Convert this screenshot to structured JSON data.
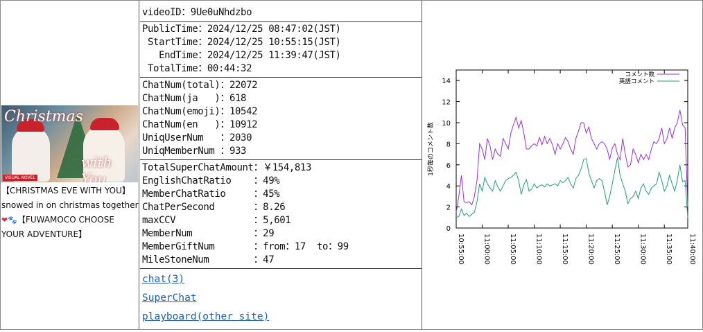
{
  "video": {
    "title_line1": "【CHRISTMAS EVE WITH YOU】",
    "title_line2": "snowed in on christmas together",
    "title_line3": "【FUWAMOCO CHOOSE YOUR ADVENTURE】",
    "thumb_text1": "Christmas",
    "thumb_text2": "with You",
    "thumb_badge": "VISUAL NOVEL",
    "hearts": "❤🐾"
  },
  "info": {
    "videoid": "videoID：9Ue0uNhdzbo",
    "public_time": "PublicTime：2024/12/25 08:47:02(JST)",
    "start_time": " StartTime：2024/12/25 10:55:15(JST)",
    "end_time": "   EndTime：2024/12/25 11:39:47(JST)",
    "total_time": " TotalTime：00:44:32"
  },
  "chat": {
    "total": "ChatNum(total)：22072",
    "ja": "ChatNum(ja   )：618",
    "emoji": "ChatNum(emoji)：10542",
    "en": "ChatNum(en   )：10912",
    "uniq_user": "UniqUserNum   ：2030",
    "uniq_member": "UniqMemberNum ：933"
  },
  "stats": {
    "superchat": "TotalSuperChatAmount：￥154,813",
    "english_ratio": "EnglishChatRatio    ：49%",
    "member_ratio": "MemberChatRatio     ：45%",
    "chat_per_sec": "ChatPerSecond       ：8.26",
    "max_ccv": "maxCCV              ：5,601",
    "member_num": "MemberNum           ：29",
    "member_gift": "MemberGiftNum       ：from：17  to：99",
    "milestone": "MileStoneNum        ：47"
  },
  "links": {
    "chat": "chat(3)",
    "superchat": "SuperChat",
    "playboard": "playboard(other site)"
  },
  "colors": {
    "series_comment": "#9b30d9",
    "series_english": "#1e9e74"
  },
  "chart_data": {
    "type": "line",
    "title": "",
    "xlabel": "",
    "ylabel": "1秒毎のコメント数",
    "xlim": [
      0,
      44.5
    ],
    "ylim": [
      0,
      15
    ],
    "x_tick_labels": [
      "10:55:00",
      "11:00:00",
      "11:05:00",
      "11:10:00",
      "11:15:00",
      "11:20:00",
      "11:25:00",
      "11:30:00",
      "11:35:00",
      "11:40:00"
    ],
    "y_tick_labels": [
      "0",
      "2",
      "4",
      "6",
      "8",
      "10",
      "12",
      "14"
    ],
    "legend_position": "top-right",
    "series": [
      {
        "name": "コメント数",
        "x": [
          0,
          0.5,
          1,
          1.5,
          2,
          2.5,
          3,
          3.5,
          4,
          4.5,
          5,
          5.5,
          6,
          6.5,
          7,
          7.5,
          8,
          8.5,
          9,
          9.5,
          10,
          10.5,
          11,
          11.5,
          12,
          12.5,
          13,
          13.5,
          14,
          14.5,
          15,
          15.5,
          16,
          16.5,
          17,
          17.5,
          18,
          18.5,
          19,
          19.5,
          20,
          20.5,
          21,
          21.5,
          22,
          22.5,
          23,
          23.5,
          24,
          24.5,
          25,
          25.5,
          26,
          26.5,
          27,
          27.5,
          28,
          28.5,
          29,
          29.5,
          30,
          30.5,
          31,
          31.5,
          32,
          32.5,
          33,
          33.5,
          34,
          34.5,
          35,
          35.5,
          36,
          36.5,
          37,
          37.5,
          38,
          38.5,
          39,
          39.5,
          40,
          40.5,
          41,
          41.5,
          42,
          42.5,
          43,
          43.5,
          44,
          44.5
        ],
        "values": [
          1.5,
          3,
          5,
          2.5,
          2.4,
          2.5,
          2.2,
          3,
          4.5,
          8,
          7.5,
          6.5,
          8.5,
          7.8,
          6.5,
          7.5,
          7,
          6.8,
          8.5,
          8,
          7.5,
          9,
          9.8,
          10.5,
          9.5,
          10.2,
          9,
          7.5,
          7.5,
          7.8,
          8,
          7.8,
          8.6,
          7.9,
          8.7,
          8,
          8.5,
          7.9,
          7,
          8,
          7.5,
          8,
          8.6,
          8.2,
          7.5,
          7,
          8.5,
          9.2,
          10,
          10,
          9,
          9.6,
          8.5,
          8,
          7.5,
          8,
          8.2,
          8,
          7.5,
          6.5,
          7.6,
          8,
          7,
          6.5,
          8.5,
          7,
          5.8,
          6,
          7.5,
          7,
          6.2,
          7,
          6.5,
          7,
          6.5,
          7.5,
          8.2,
          8,
          8.5,
          9.5,
          8,
          8.5,
          9.5,
          8.5,
          9.5,
          10,
          11.2,
          9.8,
          9.5,
          2
        ]
      },
      {
        "name": "英語コメント",
        "x": [
          0,
          0.5,
          1,
          1.5,
          2,
          2.5,
          3,
          3.5,
          4,
          4.5,
          5,
          5.5,
          6,
          6.5,
          7,
          7.5,
          8,
          8.5,
          9,
          9.5,
          10,
          10.5,
          11,
          11.5,
          12,
          12.5,
          13,
          13.5,
          14,
          14.5,
          15,
          15.5,
          16,
          16.5,
          17,
          17.5,
          18,
          18.5,
          19,
          19.5,
          20,
          20.5,
          21,
          21.5,
          22,
          22.5,
          23,
          23.5,
          24,
          24.5,
          25,
          25.5,
          26,
          26.5,
          27,
          27.5,
          28,
          28.5,
          29,
          29.5,
          30,
          30.5,
          31,
          31.5,
          32,
          32.5,
          33,
          33.5,
          34,
          34.5,
          35,
          35.5,
          36,
          36.5,
          37,
          37.5,
          38,
          38.5,
          39,
          39.5,
          40,
          40.5,
          41,
          41.5,
          42,
          42.5,
          43,
          43.5,
          44,
          44.5
        ],
        "values": [
          1,
          1.1,
          1.8,
          1.2,
          1.4,
          1.1,
          1.3,
          1.5,
          2.5,
          4.2,
          3.5,
          4.8,
          4.2,
          3.8,
          3.5,
          4.5,
          3.9,
          3.5,
          4,
          4.5,
          4.7,
          4.8,
          5,
          5.3,
          4.5,
          3.2,
          4.1,
          4.6,
          3.5,
          3.7,
          4.2,
          3.8,
          4,
          4.1,
          3.9,
          4.2,
          4,
          4.1,
          4.2,
          4,
          4.5,
          4.3,
          4.5,
          4.8,
          4.2,
          3.8,
          4.7,
          5,
          5.6,
          6.5,
          6.6,
          5.2,
          4.5,
          3.8,
          4.5,
          4.7,
          4.5,
          3.5,
          2.2,
          3,
          4.2,
          5.5,
          6.7,
          5,
          4.2,
          3.5,
          2.3,
          2.8,
          3,
          3.5,
          2.8,
          3.8,
          4.2,
          3.5,
          3.2,
          3.8,
          4,
          4.2,
          5.3,
          4.5,
          3.5,
          4,
          5,
          4.2,
          3.5,
          4.6,
          6,
          4.4,
          4.5,
          1
        ]
      }
    ]
  }
}
